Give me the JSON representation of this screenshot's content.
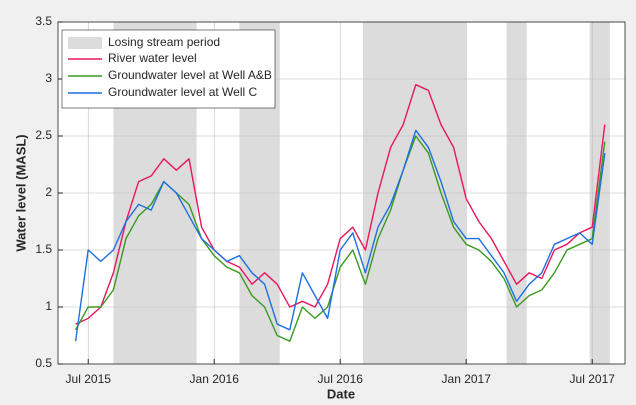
{
  "chart_data": {
    "type": "line",
    "xlabel": "Date",
    "ylabel": "Water level (MASL)",
    "span_label": "Losing stream period",
    "span_color": "#dcdcdc",
    "spans": [
      [
        2015.6,
        2015.93
      ],
      [
        2016.1,
        2016.26
      ],
      [
        2016.59,
        2017.0
      ],
      [
        2017.16,
        2017.24
      ],
      [
        2017.49,
        2017.57
      ]
    ],
    "x": [
      2015.45,
      2015.5,
      2015.55,
      2015.6,
      2015.65,
      2015.7,
      2015.75,
      2015.8,
      2015.85,
      2015.9,
      2015.95,
      2016.0,
      2016.05,
      2016.1,
      2016.15,
      2016.2,
      2016.25,
      2016.3,
      2016.35,
      2016.4,
      2016.45,
      2016.5,
      2016.55,
      2016.6,
      2016.65,
      2016.7,
      2016.75,
      2016.8,
      2016.85,
      2016.9,
      2016.95,
      2017.0,
      2017.05,
      2017.1,
      2017.15,
      2017.2,
      2017.25,
      2017.3,
      2017.35,
      2017.4,
      2017.45,
      2017.5,
      2017.55
    ],
    "series": [
      {
        "name": "River water level",
        "color": "#e8175d",
        "values": [
          0.85,
          0.9,
          1.0,
          1.3,
          1.75,
          2.1,
          2.15,
          2.3,
          2.2,
          2.3,
          1.7,
          1.5,
          1.4,
          1.35,
          1.2,
          1.3,
          1.2,
          1.0,
          1.05,
          1.0,
          1.2,
          1.6,
          1.7,
          1.5,
          2.0,
          2.4,
          2.6,
          2.95,
          2.9,
          2.6,
          2.4,
          1.95,
          1.75,
          1.6,
          1.4,
          1.2,
          1.3,
          1.25,
          1.5,
          1.55,
          1.65,
          1.7,
          2.6
        ]
      },
      {
        "name": "Groundwater level at Well A&B",
        "color": "#3a9a1e",
        "values": [
          0.8,
          1.0,
          1.0,
          1.15,
          1.6,
          1.8,
          1.9,
          2.1,
          2.0,
          1.9,
          1.6,
          1.45,
          1.35,
          1.3,
          1.1,
          1.0,
          0.75,
          0.7,
          1.0,
          0.9,
          1.0,
          1.35,
          1.5,
          1.2,
          1.6,
          1.85,
          2.2,
          2.5,
          2.35,
          2.0,
          1.7,
          1.55,
          1.5,
          1.4,
          1.25,
          1.0,
          1.1,
          1.15,
          1.3,
          1.5,
          1.55,
          1.6,
          2.45
        ]
      },
      {
        "name": "Groundwater level at Well C",
        "color": "#1f6fe0",
        "values": [
          0.7,
          1.5,
          1.4,
          1.5,
          1.75,
          1.9,
          1.85,
          2.1,
          2.0,
          1.8,
          1.6,
          1.5,
          1.4,
          1.45,
          1.3,
          1.2,
          0.85,
          0.8,
          1.3,
          1.1,
          0.9,
          1.5,
          1.65,
          1.3,
          1.7,
          1.9,
          2.2,
          2.55,
          2.4,
          2.1,
          1.75,
          1.6,
          1.6,
          1.45,
          1.3,
          1.05,
          1.2,
          1.3,
          1.55,
          1.6,
          1.65,
          1.55,
          2.35
        ]
      }
    ],
    "xlim": [
      2015.38,
      2017.63
    ],
    "xticks": [
      {
        "value": 2015.5,
        "label": "Jul 2015"
      },
      {
        "value": 2016.0,
        "label": "Jan 2016"
      },
      {
        "value": 2016.5,
        "label": "Jul 2016"
      },
      {
        "value": 2017.0,
        "label": "Jan 2017"
      },
      {
        "value": 2017.5,
        "label": "Jul 2017"
      }
    ],
    "ylim": [
      0.5,
      3.5
    ],
    "yticks": [
      0.5,
      1,
      1.5,
      2,
      2.5,
      3,
      3.5
    ],
    "grid": true
  }
}
